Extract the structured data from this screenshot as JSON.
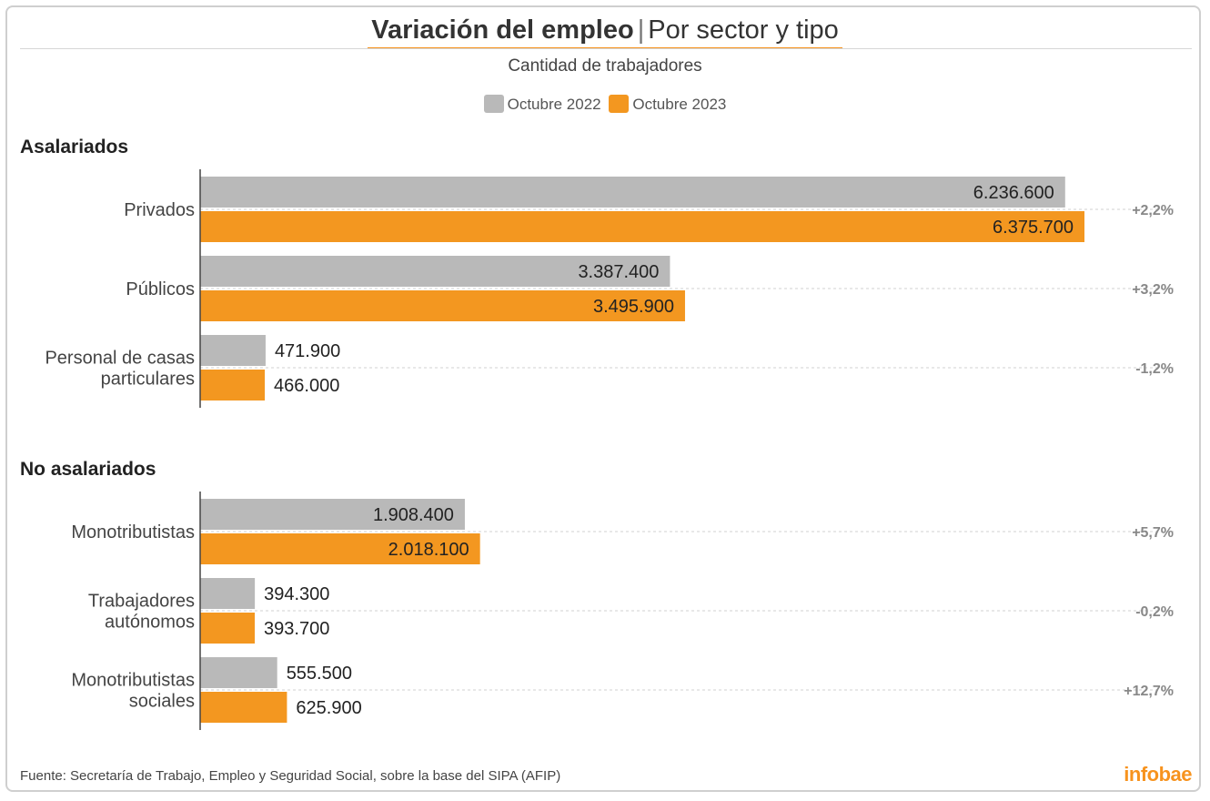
{
  "chart_data": {
    "type": "bar",
    "orientation": "horizontal",
    "title": "Variación del empleo",
    "title_separator": "|",
    "title_secondary": "Por sector y tipo",
    "subtitle": "Cantidad de trabajadores",
    "series_names": [
      "Octubre 2022",
      "Octubre 2023"
    ],
    "colors": {
      "Octubre 2022": "#b9b9b9",
      "Octubre 2023": "#f39720"
    },
    "xlim": [
      0,
      6375700
    ],
    "groups": [
      {
        "title": "Asalariados",
        "categories": [
          {
            "label": [
              "Privados"
            ],
            "values": [
              6236600,
              6375700
            ],
            "value_labels": [
              "6.236.600",
              "6.375.700"
            ],
            "change": "+2,2%"
          },
          {
            "label": [
              "Públicos"
            ],
            "values": [
              3387400,
              3495900
            ],
            "value_labels": [
              "3.387.400",
              "3.495.900"
            ],
            "change": "+3,2%"
          },
          {
            "label": [
              "Personal de casas",
              "particulares"
            ],
            "values": [
              471900,
              466000
            ],
            "value_labels": [
              "471.900",
              "466.000"
            ],
            "change": "-1,2%"
          }
        ]
      },
      {
        "title": "No asalariados",
        "categories": [
          {
            "label": [
              "Monotributistas"
            ],
            "values": [
              1908400,
              2018100
            ],
            "value_labels": [
              "1.908.400",
              "2.018.100"
            ],
            "change": "+5,7%"
          },
          {
            "label": [
              "Trabajadores",
              "autónomos"
            ],
            "values": [
              394300,
              393700
            ],
            "value_labels": [
              "394.300",
              "393.700"
            ],
            "change": "-0,2%"
          },
          {
            "label": [
              "Monotributistas",
              "sociales"
            ],
            "values": [
              555500,
              625900
            ],
            "value_labels": [
              "555.500",
              "625.900"
            ],
            "change": "+12,7%"
          }
        ]
      }
    ]
  },
  "source": "Fuente: Secretaría de Trabajo, Empleo y Seguridad Social, sobre la base del SIPA (AFIP)",
  "brand": "infobae"
}
